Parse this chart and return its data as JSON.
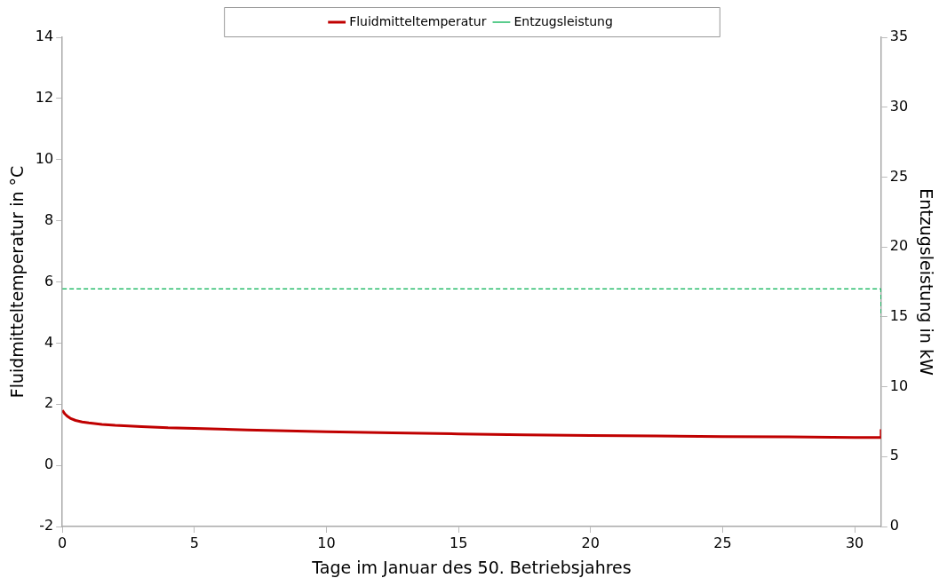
{
  "chart_data": {
    "type": "line",
    "xlabel": "Tage im Januar des 50. Betriebsjahres",
    "ylabel": "Fluidmitteltemperatur in °C",
    "y2label": "Entzugsleistung in kW",
    "xlim": [
      0,
      31
    ],
    "xticks": [
      0,
      5,
      10,
      15,
      20,
      25,
      30
    ],
    "ylim": [
      -2,
      14
    ],
    "yticks": [
      -2,
      0,
      2,
      4,
      6,
      8,
      10,
      12,
      14
    ],
    "y2lim": [
      0,
      35
    ],
    "y2ticks": [
      0,
      5,
      10,
      15,
      20,
      25,
      30,
      35
    ],
    "grid": false,
    "legend": "top",
    "marker": "none",
    "series": [
      {
        "name": "Fluidmitteltemperatur",
        "color": "#c00000",
        "line_style": "solid",
        "x": [
          0,
          0.1,
          0.2,
          0.3,
          0.5,
          0.75,
          1,
          1.5,
          2,
          3,
          4,
          5,
          7,
          10,
          12.5,
          15,
          17.5,
          20,
          22.5,
          25,
          27.5,
          30,
          30.99,
          31
        ],
        "values": [
          1.8,
          1.68,
          1.6,
          1.54,
          1.47,
          1.42,
          1.39,
          1.34,
          1.31,
          1.27,
          1.23,
          1.21,
          1.16,
          1.1,
          1.06,
          1.03,
          1.0,
          0.98,
          0.96,
          0.94,
          0.93,
          0.91,
          0.91,
          1.18
        ]
      },
      {
        "name": "Entzugsleistung",
        "color": "#00b050",
        "line_style": "dashed",
        "axis": "y2",
        "x": [
          0,
          30.99,
          31
        ],
        "values": [
          17,
          17,
          15
        ]
      }
    ]
  }
}
